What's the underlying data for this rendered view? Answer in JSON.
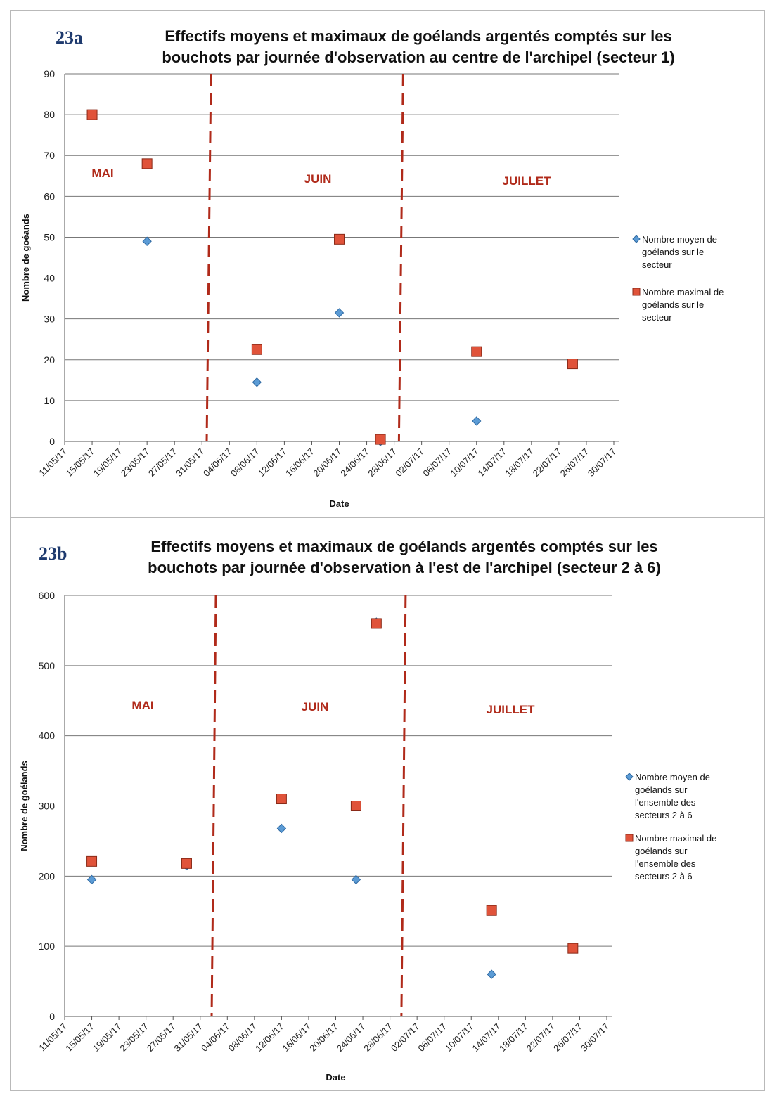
{
  "figures": [
    {
      "id": "23a",
      "label": "23a",
      "title_line1": "Effectifs moyens et maximaux de goélands argentés comptés sur les",
      "title_line2": "bouchots par journée d'observation  au centre de l'archipel (secteur 1)",
      "months": [
        "MAI",
        "JUIN",
        "JUILLET"
      ],
      "legend": [
        "Nombre moyen de goélands sur le secteur",
        "Nombre maximal de goélands sur le secteur"
      ]
    },
    {
      "id": "23b",
      "label": "23b",
      "title_line1": "Effectifs moyens et maximaux de goélands argentés comptés sur les",
      "title_line2": "bouchots par journée d'observation à l'est de l'archipel (secteur 2 à 6)",
      "months": [
        "MAI",
        "JUIN",
        "JUILLET"
      ],
      "legend": [
        "Nombre moyen de goélands sur l'ensemble des secteurs 2 à 6",
        "Nombre maximal de goélands sur l'ensemble des secteurs 2 à 6"
      ]
    }
  ],
  "colors": {
    "mean": "#5b9bd5",
    "max": "#e0533a",
    "divider": "#b02a1a",
    "month_text": "#b02a1a",
    "grid": "#777777"
  },
  "chart_data": [
    {
      "type": "scatter",
      "title": "Effectifs moyens et maximaux de goélands argentés comptés sur les bouchots par journée d'observation  au centre de l'archipel (secteur 1)",
      "xlabel": "Date",
      "ylabel": "Nombre de goéands",
      "x_ticks": [
        "11/05/17",
        "15/05/17",
        "19/05/17",
        "23/05/17",
        "27/05/17",
        "31/05/17",
        "04/06/17",
        "08/06/17",
        "12/06/17",
        "16/06/17",
        "20/06/17",
        "24/06/17",
        "28/06/17",
        "02/07/17",
        "06/07/17",
        "10/07/17",
        "14/07/17",
        "18/07/17",
        "22/07/17",
        "26/07/17",
        "30/07/17"
      ],
      "xlim": [
        "11/05/17",
        "30/07/17"
      ],
      "ylim": [
        0,
        90
      ],
      "y_ticks": [
        0,
        10,
        20,
        30,
        40,
        50,
        60,
        70,
        80,
        90
      ],
      "grid": true,
      "legend_position": "right",
      "month_dividers": [
        "01/06/17",
        "29/06/17"
      ],
      "series": [
        {
          "name": "Nombre moyen de goélands sur le secteur",
          "marker": "diamond",
          "points": [
            {
              "x": "15/05/17",
              "y": 80
            },
            {
              "x": "23/05/17",
              "y": 49
            },
            {
              "x": "08/06/17",
              "y": 14.5
            },
            {
              "x": "20/06/17",
              "y": 31.5
            },
            {
              "x": "26/06/17",
              "y": 0
            },
            {
              "x": "10/07/17",
              "y": 5
            },
            {
              "x": "24/07/17",
              "y": 19
            }
          ]
        },
        {
          "name": "Nombre maximal de goélands sur le secteur",
          "marker": "square",
          "points": [
            {
              "x": "15/05/17",
              "y": 80
            },
            {
              "x": "23/05/17",
              "y": 68
            },
            {
              "x": "08/06/17",
              "y": 22.5
            },
            {
              "x": "20/06/17",
              "y": 49.5
            },
            {
              "x": "26/06/17",
              "y": 0.5
            },
            {
              "x": "10/07/17",
              "y": 22
            },
            {
              "x": "24/07/17",
              "y": 19
            }
          ]
        }
      ]
    },
    {
      "type": "scatter",
      "title": "Effectifs moyens et maximaux de goélands argentés comptés sur les bouchots par journée d'observation à l'est de l'archipel (secteur 2 à 6)",
      "xlabel": "Date",
      "ylabel": "Nombre de goélands",
      "x_ticks": [
        "11/05/17",
        "15/05/17",
        "19/05/17",
        "23/05/17",
        "27/05/17",
        "31/05/17",
        "04/06/17",
        "08/06/17",
        "12/06/17",
        "16/06/17",
        "20/06/17",
        "24/06/17",
        "28/06/17",
        "02/07/17",
        "06/07/17",
        "10/07/17",
        "14/07/17",
        "18/07/17",
        "22/07/17",
        "26/07/17",
        "30/07/17"
      ],
      "xlim": [
        "11/05/17",
        "30/07/17"
      ],
      "ylim": [
        0,
        600
      ],
      "y_ticks": [
        0,
        100,
        200,
        300,
        400,
        500,
        600
      ],
      "grid": true,
      "legend_position": "right",
      "month_dividers": [
        "02/06/17",
        "30/06/17"
      ],
      "series": [
        {
          "name": "Nombre moyen de goélands sur l'ensemble des secteurs 2 à 6",
          "marker": "diamond",
          "points": [
            {
              "x": "15/05/17",
              "y": 195
            },
            {
              "x": "29/05/17",
              "y": 215
            },
            {
              "x": "12/06/17",
              "y": 268
            },
            {
              "x": "23/06/17",
              "y": 195
            },
            {
              "x": "26/06/17",
              "y": 562
            },
            {
              "x": "13/07/17",
              "y": 60
            },
            {
              "x": "25/07/17",
              "y": 97
            }
          ]
        },
        {
          "name": "Nombre maximal de goélands sur l'ensemble des secteurs 2 à 6",
          "marker": "square",
          "points": [
            {
              "x": "15/05/17",
              "y": 221
            },
            {
              "x": "29/05/17",
              "y": 218
            },
            {
              "x": "12/06/17",
              "y": 310
            },
            {
              "x": "23/06/17",
              "y": 300
            },
            {
              "x": "26/06/17",
              "y": 560
            },
            {
              "x": "13/07/17",
              "y": 151
            },
            {
              "x": "25/07/17",
              "y": 97
            }
          ]
        }
      ]
    }
  ]
}
